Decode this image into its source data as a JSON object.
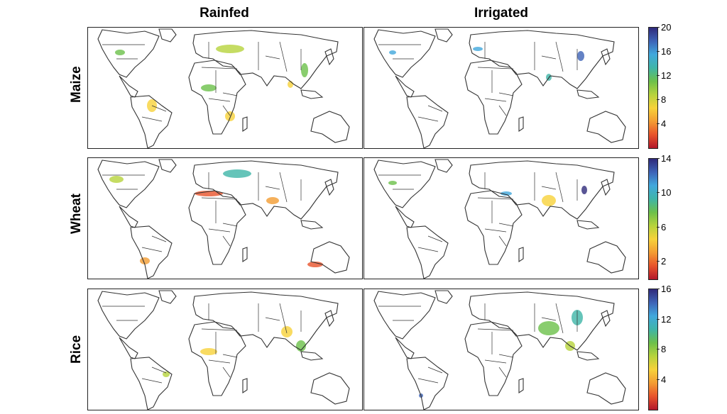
{
  "columns": [
    "Rainfed",
    "Irrigated"
  ],
  "rows": [
    {
      "label": "Maize",
      "colorbar": {
        "max": 20,
        "ticks": [
          "4",
          "8",
          "12",
          "16",
          "20"
        ]
      }
    },
    {
      "label": "Wheat",
      "colorbar": {
        "max": 14,
        "ticks": [
          "2",
          "6",
          "10",
          "14"
        ]
      }
    },
    {
      "label": "Rice",
      "colorbar": {
        "max": 16,
        "ticks": [
          "4",
          "8",
          "12",
          "16"
        ]
      }
    }
  ],
  "colors": {
    "scale": [
      "#b2182b",
      "#e8532b",
      "#f39c32",
      "#f7d23a",
      "#b7d33c",
      "#6cc04a",
      "#3fb5a8",
      "#41a8dc",
      "#3d63b7",
      "#2f2a7a"
    ],
    "outline": "#333333"
  },
  "icons": {
    "map": "world-outline-map",
    "colorbar": "color-scale-bar"
  }
}
